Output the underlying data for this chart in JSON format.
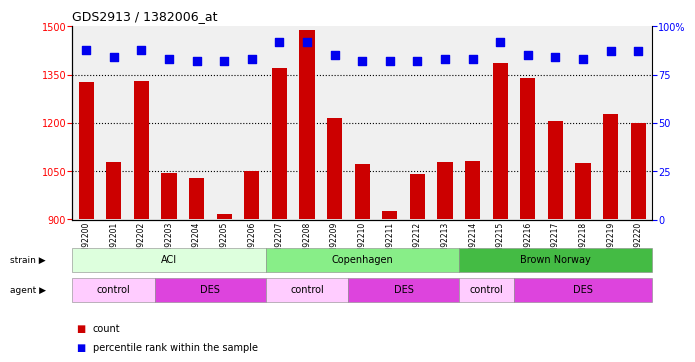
{
  "title": "GDS2913 / 1382006_at",
  "samples": [
    "GSM92200",
    "GSM92201",
    "GSM92202",
    "GSM92203",
    "GSM92204",
    "GSM92205",
    "GSM92206",
    "GSM92207",
    "GSM92208",
    "GSM92209",
    "GSM92210",
    "GSM92211",
    "GSM92212",
    "GSM92213",
    "GSM92214",
    "GSM92215",
    "GSM92216",
    "GSM92217",
    "GSM92218",
    "GSM92219",
    "GSM92220"
  ],
  "counts": [
    1327,
    1080,
    1330,
    1043,
    1030,
    918,
    1052,
    1370,
    1490,
    1215,
    1073,
    925,
    1040,
    1080,
    1082,
    1385,
    1340,
    1207,
    1075,
    1228,
    1200
  ],
  "percentile": [
    88,
    84,
    88,
    83,
    82,
    82,
    83,
    92,
    92,
    85,
    82,
    82,
    82,
    83,
    83,
    92,
    85,
    84,
    83,
    87,
    87
  ],
  "bar_color": "#cc0000",
  "dot_color": "#0000ee",
  "ylim_left": [
    900,
    1500
  ],
  "ylim_right": [
    0,
    100
  ],
  "yticks_left": [
    900,
    1050,
    1200,
    1350,
    1500
  ],
  "yticks_right": [
    0,
    25,
    50,
    75,
    100
  ],
  "ytick_labels_right": [
    "0",
    "25",
    "50",
    "75",
    "100%"
  ],
  "grid_values": [
    1050,
    1200,
    1350
  ],
  "strain_groups": [
    {
      "label": "ACI",
      "start": 0,
      "end": 6,
      "color": "#ddffdd"
    },
    {
      "label": "Copenhagen",
      "start": 7,
      "end": 13,
      "color": "#88ee88"
    },
    {
      "label": "Brown Norway",
      "start": 14,
      "end": 20,
      "color": "#44bb44"
    }
  ],
  "agent_groups": [
    {
      "label": "control",
      "start": 0,
      "end": 2,
      "color": "#ffccff"
    },
    {
      "label": "DES",
      "start": 3,
      "end": 6,
      "color": "#dd44dd"
    },
    {
      "label": "control",
      "start": 7,
      "end": 9,
      "color": "#ffccff"
    },
    {
      "label": "DES",
      "start": 10,
      "end": 13,
      "color": "#dd44dd"
    },
    {
      "label": "control",
      "start": 14,
      "end": 15,
      "color": "#ffccff"
    },
    {
      "label": "DES",
      "start": 16,
      "end": 20,
      "color": "#dd44dd"
    }
  ],
  "legend_count_color": "#cc0000",
  "legend_dot_color": "#0000ee",
  "strain_label": "strain",
  "agent_label": "agent",
  "legend_count_text": "count",
  "legend_percentile_text": "percentile rank within the sample",
  "bar_width": 0.55,
  "background_color": "#ffffff",
  "plot_bg_color": "#f0f0f0"
}
